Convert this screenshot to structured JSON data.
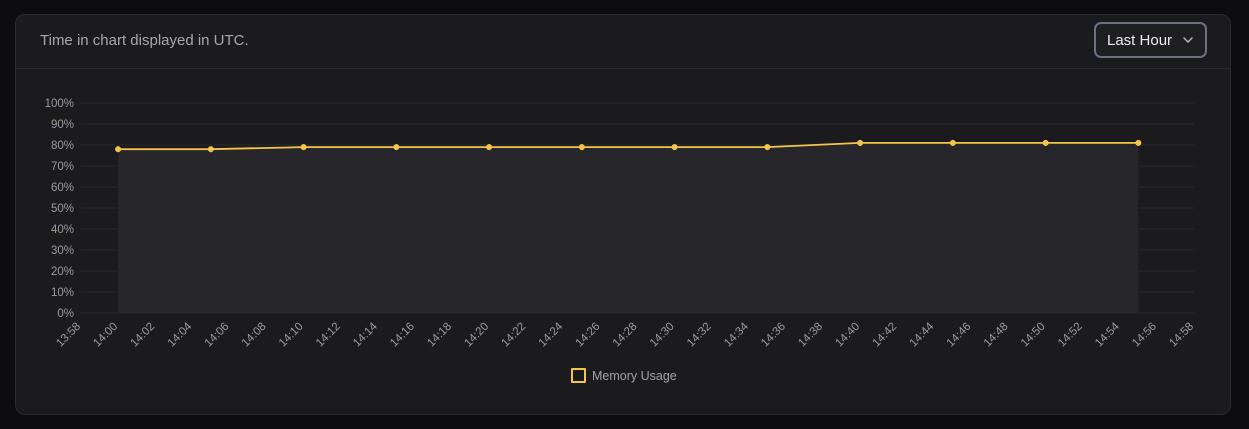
{
  "header": {
    "note": "Time in chart displayed in UTC.",
    "range_select": {
      "value": "Last Hour",
      "icon": "chevron-down-icon"
    }
  },
  "colors": {
    "series": "#f3c54b",
    "grid": "#2a2a2e",
    "tick_text": "#9a9aa2",
    "area": "#27272b"
  },
  "chart_data": {
    "type": "area",
    "title": "",
    "xlabel": "",
    "ylabel": "",
    "x_ticks": [
      "13:58",
      "14:00",
      "14:02",
      "14:04",
      "14:06",
      "14:08",
      "14:10",
      "14:12",
      "14:14",
      "14:16",
      "14:18",
      "14:20",
      "14:22",
      "14:24",
      "14:26",
      "14:28",
      "14:30",
      "14:32",
      "14:34",
      "14:36",
      "14:38",
      "14:40",
      "14:42",
      "14:44",
      "14:46",
      "14:48",
      "14:50",
      "14:52",
      "14:54",
      "14:56",
      "14:58"
    ],
    "y_ticks": [
      "0%",
      "10%",
      "20%",
      "30%",
      "40%",
      "50%",
      "60%",
      "70%",
      "80%",
      "90%",
      "100%"
    ],
    "ylim": [
      0,
      100
    ],
    "xlim": [
      "13:58",
      "14:58"
    ],
    "grid": true,
    "legend_position": "bottom",
    "series": [
      {
        "name": "Memory Usage",
        "x": [
          "14:00",
          "14:05",
          "14:10",
          "14:15",
          "14:20",
          "14:25",
          "14:30",
          "14:35",
          "14:40",
          "14:45",
          "14:50",
          "14:55"
        ],
        "values": [
          78,
          78,
          79,
          79,
          79,
          79,
          79,
          79,
          81,
          81,
          81,
          81
        ]
      }
    ]
  }
}
